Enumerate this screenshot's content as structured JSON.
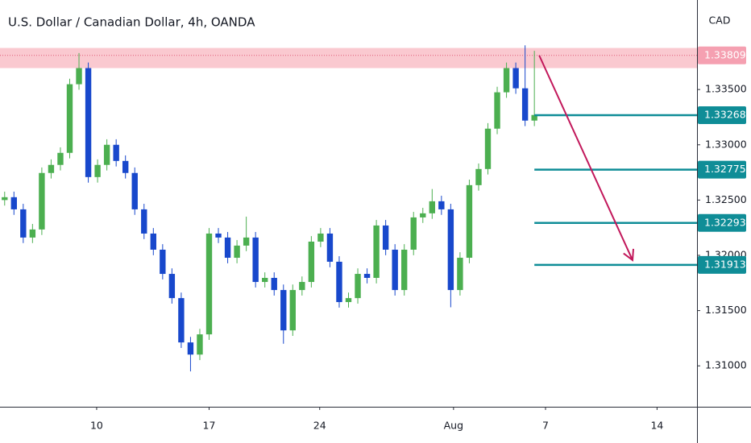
{
  "chart_data": {
    "type": "candlestick",
    "title": "U.S. Dollar / Canadian Dollar, 4h, OANDA",
    "currency": "CAD",
    "up_color": "#4caf50",
    "down_color": "#1848cc",
    "x": [
      0,
      1,
      2,
      3,
      4,
      5,
      6,
      7,
      8,
      9,
      10,
      11,
      12,
      13,
      14,
      15,
      16,
      17,
      18,
      19,
      20,
      21,
      22,
      23,
      24,
      25,
      26,
      27,
      28,
      29,
      30,
      31,
      32,
      33,
      34,
      35,
      36,
      37,
      38,
      39,
      40,
      41,
      42,
      43,
      44,
      45,
      46,
      47,
      48,
      49,
      50,
      51,
      52,
      53,
      54,
      55,
      56,
      57
    ],
    "open": [
      1.325,
      1.32526,
      1.32416,
      1.32161,
      1.32234,
      1.32745,
      1.32818,
      1.32927,
      1.33548,
      1.33694,
      1.32708,
      1.32818,
      1.33,
      1.32854,
      1.32745,
      1.32416,
      1.32197,
      1.32051,
      1.31832,
      1.31613,
      1.31212,
      1.31102,
      1.31285,
      1.32197,
      1.32161,
      1.31978,
      1.32088,
      1.32161,
      1.31759,
      1.31796,
      1.31686,
      1.31321,
      1.31686,
      1.31759,
      1.32124,
      1.32197,
      1.31942,
      1.31577,
      1.31613,
      1.31832,
      1.31796,
      1.3227,
      1.32051,
      1.31686,
      1.32051,
      1.32343,
      1.3238,
      1.32489,
      1.32416,
      1.31686,
      1.31978,
      1.32635,
      1.32781,
      1.33146,
      1.33475,
      1.33694,
      1.33511,
      1.33219
    ],
    "high": [
      1.32576,
      1.32576,
      1.32466,
      1.32284,
      1.32795,
      1.32868,
      1.32977,
      1.33598,
      1.3383,
      1.33744,
      1.32868,
      1.3305,
      1.3305,
      1.32904,
      1.32795,
      1.32466,
      1.32247,
      1.32101,
      1.31882,
      1.31663,
      1.31262,
      1.31335,
      1.32247,
      1.32247,
      1.32211,
      1.32138,
      1.3235,
      1.32211,
      1.31846,
      1.31846,
      1.31736,
      1.31736,
      1.31809,
      1.32174,
      1.32247,
      1.32247,
      1.31992,
      1.31663,
      1.31882,
      1.31882,
      1.3232,
      1.3232,
      1.32101,
      1.32101,
      1.32393,
      1.3243,
      1.326,
      1.32539,
      1.32466,
      1.32028,
      1.32685,
      1.32831,
      1.33196,
      1.33525,
      1.33744,
      1.33744,
      1.339,
      1.3385
    ],
    "low": [
      1.3245,
      1.32366,
      1.32111,
      1.32111,
      1.32184,
      1.32695,
      1.32768,
      1.32877,
      1.33498,
      1.32658,
      1.32658,
      1.32768,
      1.32804,
      1.32695,
      1.32366,
      1.32147,
      1.32001,
      1.31782,
      1.31563,
      1.31162,
      1.3095,
      1.31052,
      1.31235,
      1.32111,
      1.31928,
      1.31928,
      1.32038,
      1.31709,
      1.31709,
      1.31636,
      1.312,
      1.31271,
      1.31636,
      1.31709,
      1.32074,
      1.31892,
      1.31527,
      1.31527,
      1.31563,
      1.31746,
      1.31746,
      1.32001,
      1.31636,
      1.31636,
      1.32001,
      1.32293,
      1.3233,
      1.32366,
      1.3153,
      1.31636,
      1.31928,
      1.32585,
      1.32731,
      1.33096,
      1.33425,
      1.33461,
      1.33169,
      1.33169
    ],
    "close": [
      1.32526,
      1.32416,
      1.32161,
      1.32234,
      1.32745,
      1.32818,
      1.32927,
      1.33548,
      1.33694,
      1.32708,
      1.32818,
      1.33,
      1.32854,
      1.32745,
      1.32416,
      1.32197,
      1.32051,
      1.31832,
      1.31613,
      1.31212,
      1.31102,
      1.31285,
      1.32197,
      1.32161,
      1.31978,
      1.32088,
      1.32161,
      1.31759,
      1.31796,
      1.31686,
      1.31321,
      1.31686,
      1.31759,
      1.32124,
      1.32197,
      1.31942,
      1.31577,
      1.31613,
      1.31832,
      1.31796,
      1.3227,
      1.32051,
      1.31686,
      1.32051,
      1.32343,
      1.3238,
      1.32489,
      1.32416,
      1.31686,
      1.31978,
      1.32635,
      1.32781,
      1.33146,
      1.33475,
      1.33694,
      1.33511,
      1.33219,
      1.3327
    ],
    "xlim": [
      -0.5,
      74.5
    ],
    "xticks": [
      {
        "value": 9.9,
        "label": "10"
      },
      {
        "value": 22.0,
        "label": "17"
      },
      {
        "value": 33.9,
        "label": "24"
      },
      {
        "value": 48.3,
        "label": "Aug"
      },
      {
        "value": 58.2,
        "label": "7"
      },
      {
        "value": 70.2,
        "label": "14"
      }
    ],
    "ylim": [
      1.3063,
      1.3431
    ],
    "yticks": [
      {
        "value": 1.335,
        "label": "1.33500"
      },
      {
        "value": 1.33,
        "label": "1.33000"
      },
      {
        "value": 1.325,
        "label": "1.32500"
      },
      {
        "value": 1.32,
        "label": "1.32000"
      },
      {
        "value": 1.315,
        "label": "1.31500"
      },
      {
        "value": 1.31,
        "label": "1.31000"
      }
    ],
    "grid": false,
    "resistance_zone": {
      "range": [
        1.33694,
        1.33876
      ],
      "level": 1.33809,
      "color": "#f9c0c8",
      "label_color": "#f5a0b1"
    },
    "targets": {
      "color": "#0f8d97",
      "levels": [
        1.33268,
        1.32775,
        1.32293,
        1.31913
      ]
    },
    "arrow_color": "#c2185b"
  }
}
